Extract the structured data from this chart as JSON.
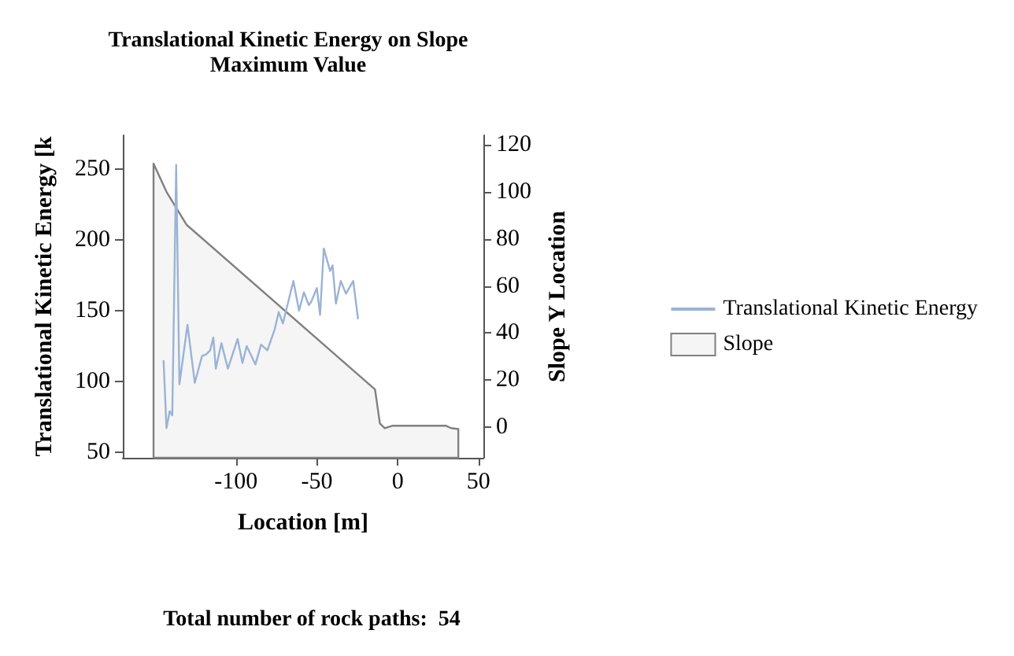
{
  "chart_data": {
    "type": "line",
    "title": "Translational Kinetic Energy on Slope",
    "subtitle": "Maximum Value",
    "xlabel": "Location [m]",
    "ylabel": "Translational Kinetic Energy [k",
    "y2label": "Slope Y Location",
    "annotations": [
      "Total number of rock paths:  54"
    ],
    "xlim": [
      -170,
      53
    ],
    "xticks": [
      -100,
      -50,
      0,
      50
    ],
    "ylim": [
      46,
      274
    ],
    "yticks": [
      50,
      100,
      150,
      200,
      250
    ],
    "y2lim": [
      -13,
      124
    ],
    "y2ticks": [
      0,
      20,
      40,
      60,
      80,
      100,
      120
    ],
    "grid": false,
    "legend": "right",
    "marker": "none",
    "line_style": "solid",
    "series": [
      {
        "name": "Translational Kinetic Energy",
        "type": "line",
        "color": "#9ab3d5",
        "x": [
          -144.8,
          -143,
          -141,
          -139.4,
          -137,
          -135,
          -130,
          -125.5,
          -121,
          -118.5,
          -116,
          -114,
          -112.5,
          -109,
          -105,
          -99,
          -96,
          -93.4,
          -88,
          -84.5,
          -80.6,
          -76,
          -73.6,
          -71,
          -64.5,
          -61,
          -58,
          -55,
          -53.6,
          -50,
          -48,
          -45.7,
          -41.8,
          -40.3,
          -38.2,
          -35.2,
          -32,
          -27.5,
          -24.5
        ],
        "values": [
          115,
          67,
          79,
          76,
          253,
          98,
          140,
          99,
          118,
          119,
          122,
          131,
          109,
          127,
          109,
          130,
          113,
          125,
          112,
          126,
          122,
          137,
          149,
          141,
          171,
          150,
          163,
          154,
          156,
          166,
          147,
          194,
          178,
          182,
          155,
          171,
          162,
          171,
          144
        ]
      },
      {
        "name": "Slope",
        "type": "area",
        "axis": "y2",
        "color": "#808080",
        "x": [
          -151,
          -151,
          -143,
          -130.6,
          -14,
          -11,
          -8,
          -3.4,
          30,
          33,
          37.5,
          37.5
        ],
        "values": [
          -13,
          112,
          100,
          86,
          16,
          1.6,
          -0.4,
          0.6,
          0.6,
          -0.4,
          -0.8,
          -13
        ]
      }
    ]
  }
}
